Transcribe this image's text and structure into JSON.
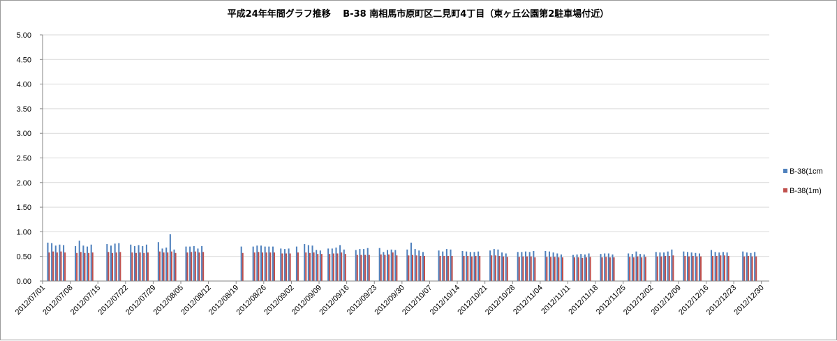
{
  "chart_data": {
    "type": "bar",
    "title": "平成24年年間グラフ推移　 B-38 南相馬市原町区二見町4丁目（東ヶ丘公園第2駐車場付近）",
    "xlabel": "",
    "ylabel": "",
    "ylim": [
      0,
      5
    ],
    "yticks": [
      "0.00",
      "0.50",
      "1.00",
      "1.50",
      "2.00",
      "2.50",
      "3.00",
      "3.50",
      "4.00",
      "4.50",
      "5.00"
    ],
    "x_start": "2012-07-01",
    "x_end": "2012-12-31",
    "xtick_labels": [
      "2012/07/01",
      "2012/07/08",
      "2012/07/15",
      "2012/07/22",
      "2012/07/29",
      "2012/08/05",
      "2012/08/12",
      "2012/08/19",
      "2012/08/26",
      "2012/09/02",
      "2012/09/09",
      "2012/09/16",
      "2012/09/23",
      "2012/09/30",
      "2012/10/07",
      "2012/10/14",
      "2012/10/21",
      "2012/10/28",
      "2012/11/04",
      "2012/11/11",
      "2012/11/18",
      "2012/11/25",
      "2012/12/02",
      "2012/12/09",
      "2012/12/16",
      "2012/12/23",
      "2012/12/30"
    ],
    "grid": true,
    "legend_position": "right",
    "series": [
      {
        "name": "B-38(1cm",
        "color": "#4f81bd",
        "points": [
          [
            "2012-07-02",
            0.78
          ],
          [
            "2012-07-03",
            0.77
          ],
          [
            "2012-07-04",
            0.72
          ],
          [
            "2012-07-05",
            0.74
          ],
          [
            "2012-07-06",
            0.73
          ],
          [
            "2012-07-09",
            0.71
          ],
          [
            "2012-07-10",
            0.82
          ],
          [
            "2012-07-11",
            0.72
          ],
          [
            "2012-07-12",
            0.7
          ],
          [
            "2012-07-13",
            0.74
          ],
          [
            "2012-07-17",
            0.75
          ],
          [
            "2012-07-18",
            0.72
          ],
          [
            "2012-07-19",
            0.76
          ],
          [
            "2012-07-20",
            0.77
          ],
          [
            "2012-07-23",
            0.74
          ],
          [
            "2012-07-24",
            0.71
          ],
          [
            "2012-07-25",
            0.73
          ],
          [
            "2012-07-26",
            0.71
          ],
          [
            "2012-07-27",
            0.74
          ],
          [
            "2012-07-30",
            0.79
          ],
          [
            "2012-07-31",
            0.66
          ],
          [
            "2012-08-01",
            0.68
          ],
          [
            "2012-08-02",
            0.95
          ],
          [
            "2012-08-03",
            0.64
          ],
          [
            "2012-08-06",
            0.7
          ],
          [
            "2012-08-07",
            0.7
          ],
          [
            "2012-08-08",
            0.71
          ],
          [
            "2012-08-09",
            0.66
          ],
          [
            "2012-08-10",
            0.71
          ],
          [
            "2012-08-20",
            0.7
          ],
          [
            "2012-08-23",
            0.7
          ],
          [
            "2012-08-24",
            0.72
          ],
          [
            "2012-08-25",
            0.72
          ],
          [
            "2012-08-26",
            0.7
          ],
          [
            "2012-08-27",
            0.7
          ],
          [
            "2012-08-28",
            0.7
          ],
          [
            "2012-08-30",
            0.66
          ],
          [
            "2012-08-31",
            0.65
          ],
          [
            "2012-09-01",
            0.66
          ],
          [
            "2012-09-03",
            0.7
          ],
          [
            "2012-09-05",
            0.75
          ],
          [
            "2012-09-06",
            0.73
          ],
          [
            "2012-09-07",
            0.72
          ],
          [
            "2012-09-08",
            0.63
          ],
          [
            "2012-09-09",
            0.62
          ],
          [
            "2012-09-11",
            0.66
          ],
          [
            "2012-09-12",
            0.66
          ],
          [
            "2012-09-13",
            0.68
          ],
          [
            "2012-09-14",
            0.73
          ],
          [
            "2012-09-15",
            0.64
          ],
          [
            "2012-09-18",
            0.63
          ],
          [
            "2012-09-19",
            0.65
          ],
          [
            "2012-09-20",
            0.65
          ],
          [
            "2012-09-21",
            0.67
          ],
          [
            "2012-09-24",
            0.67
          ],
          [
            "2012-09-25",
            0.59
          ],
          [
            "2012-09-26",
            0.63
          ],
          [
            "2012-09-27",
            0.64
          ],
          [
            "2012-09-28",
            0.63
          ],
          [
            "2012-10-01",
            0.64
          ],
          [
            "2012-10-02",
            0.78
          ],
          [
            "2012-10-03",
            0.65
          ],
          [
            "2012-10-04",
            0.62
          ],
          [
            "2012-10-05",
            0.59
          ],
          [
            "2012-10-09",
            0.62
          ],
          [
            "2012-10-10",
            0.6
          ],
          [
            "2012-10-11",
            0.65
          ],
          [
            "2012-10-12",
            0.64
          ],
          [
            "2012-10-15",
            0.61
          ],
          [
            "2012-10-16",
            0.6
          ],
          [
            "2012-10-17",
            0.59
          ],
          [
            "2012-10-18",
            0.59
          ],
          [
            "2012-10-19",
            0.6
          ],
          [
            "2012-10-22",
            0.62
          ],
          [
            "2012-10-23",
            0.65
          ],
          [
            "2012-10-24",
            0.64
          ],
          [
            "2012-10-25",
            0.58
          ],
          [
            "2012-10-26",
            0.56
          ],
          [
            "2012-10-29",
            0.59
          ],
          [
            "2012-10-30",
            0.59
          ],
          [
            "2012-10-31",
            0.6
          ],
          [
            "2012-11-01",
            0.59
          ],
          [
            "2012-11-02",
            0.61
          ],
          [
            "2012-11-05",
            0.61
          ],
          [
            "2012-11-06",
            0.6
          ],
          [
            "2012-11-07",
            0.58
          ],
          [
            "2012-11-08",
            0.56
          ],
          [
            "2012-11-09",
            0.54
          ],
          [
            "2012-11-12",
            0.53
          ],
          [
            "2012-11-13",
            0.54
          ],
          [
            "2012-11-14",
            0.55
          ],
          [
            "2012-11-15",
            0.54
          ],
          [
            "2012-11-16",
            0.56
          ],
          [
            "2012-11-19",
            0.55
          ],
          [
            "2012-11-20",
            0.56
          ],
          [
            "2012-11-21",
            0.56
          ],
          [
            "2012-11-22",
            0.54
          ],
          [
            "2012-11-26",
            0.56
          ],
          [
            "2012-11-27",
            0.55
          ],
          [
            "2012-11-28",
            0.6
          ],
          [
            "2012-11-29",
            0.55
          ],
          [
            "2012-11-30",
            0.54
          ],
          [
            "2012-12-03",
            0.59
          ],
          [
            "2012-12-04",
            0.58
          ],
          [
            "2012-12-05",
            0.58
          ],
          [
            "2012-12-06",
            0.6
          ],
          [
            "2012-12-07",
            0.64
          ],
          [
            "2012-12-10",
            0.6
          ],
          [
            "2012-12-11",
            0.59
          ],
          [
            "2012-12-12",
            0.58
          ],
          [
            "2012-12-13",
            0.57
          ],
          [
            "2012-12-14",
            0.56
          ],
          [
            "2012-12-17",
            0.63
          ],
          [
            "2012-12-18",
            0.59
          ],
          [
            "2012-12-19",
            0.58
          ],
          [
            "2012-12-20",
            0.59
          ],
          [
            "2012-12-21",
            0.58
          ],
          [
            "2012-12-25",
            0.6
          ],
          [
            "2012-12-26",
            0.58
          ],
          [
            "2012-12-27",
            0.57
          ],
          [
            "2012-12-28",
            0.59
          ]
        ]
      },
      {
        "name": "B-38(1m)",
        "color": "#c0504d",
        "points": [
          [
            "2012-07-02",
            0.58
          ],
          [
            "2012-07-03",
            0.6
          ],
          [
            "2012-07-04",
            0.58
          ],
          [
            "2012-07-05",
            0.6
          ],
          [
            "2012-07-06",
            0.58
          ],
          [
            "2012-07-09",
            0.57
          ],
          [
            "2012-07-10",
            0.59
          ],
          [
            "2012-07-11",
            0.57
          ],
          [
            "2012-07-12",
            0.57
          ],
          [
            "2012-07-13",
            0.58
          ],
          [
            "2012-07-17",
            0.59
          ],
          [
            "2012-07-18",
            0.57
          ],
          [
            "2012-07-19",
            0.58
          ],
          [
            "2012-07-20",
            0.59
          ],
          [
            "2012-07-23",
            0.58
          ],
          [
            "2012-07-24",
            0.57
          ],
          [
            "2012-07-25",
            0.58
          ],
          [
            "2012-07-26",
            0.57
          ],
          [
            "2012-07-27",
            0.58
          ],
          [
            "2012-07-30",
            0.6
          ],
          [
            "2012-07-31",
            0.58
          ],
          [
            "2012-08-01",
            0.58
          ],
          [
            "2012-08-02",
            0.6
          ],
          [
            "2012-08-03",
            0.57
          ],
          [
            "2012-08-06",
            0.58
          ],
          [
            "2012-08-07",
            0.59
          ],
          [
            "2012-08-08",
            0.6
          ],
          [
            "2012-08-09",
            0.58
          ],
          [
            "2012-08-10",
            0.59
          ],
          [
            "2012-08-20",
            0.57
          ],
          [
            "2012-08-23",
            0.58
          ],
          [
            "2012-08-24",
            0.59
          ],
          [
            "2012-08-25",
            0.58
          ],
          [
            "2012-08-26",
            0.58
          ],
          [
            "2012-08-27",
            0.58
          ],
          [
            "2012-08-28",
            0.58
          ],
          [
            "2012-08-30",
            0.56
          ],
          [
            "2012-08-31",
            0.56
          ],
          [
            "2012-09-01",
            0.56
          ],
          [
            "2012-09-03",
            0.58
          ],
          [
            "2012-09-05",
            0.58
          ],
          [
            "2012-09-06",
            0.57
          ],
          [
            "2012-09-07",
            0.58
          ],
          [
            "2012-09-08",
            0.55
          ],
          [
            "2012-09-09",
            0.55
          ],
          [
            "2012-09-11",
            0.55
          ],
          [
            "2012-09-12",
            0.56
          ],
          [
            "2012-09-13",
            0.56
          ],
          [
            "2012-09-14",
            0.58
          ],
          [
            "2012-09-15",
            0.55
          ],
          [
            "2012-09-18",
            0.53
          ],
          [
            "2012-09-19",
            0.53
          ],
          [
            "2012-09-20",
            0.53
          ],
          [
            "2012-09-21",
            0.53
          ],
          [
            "2012-09-24",
            0.54
          ],
          [
            "2012-09-25",
            0.53
          ],
          [
            "2012-09-26",
            0.54
          ],
          [
            "2012-09-27",
            0.58
          ],
          [
            "2012-09-28",
            0.52
          ],
          [
            "2012-10-01",
            0.52
          ],
          [
            "2012-10-02",
            0.53
          ],
          [
            "2012-10-03",
            0.52
          ],
          [
            "2012-10-04",
            0.51
          ],
          [
            "2012-10-05",
            0.51
          ],
          [
            "2012-10-09",
            0.51
          ],
          [
            "2012-10-10",
            0.51
          ],
          [
            "2012-10-11",
            0.51
          ],
          [
            "2012-10-12",
            0.51
          ],
          [
            "2012-10-15",
            0.51
          ],
          [
            "2012-10-16",
            0.51
          ],
          [
            "2012-10-17",
            0.5
          ],
          [
            "2012-10-18",
            0.51
          ],
          [
            "2012-10-19",
            0.51
          ],
          [
            "2012-10-22",
            0.52
          ],
          [
            "2012-10-23",
            0.52
          ],
          [
            "2012-10-24",
            0.51
          ],
          [
            "2012-10-25",
            0.5
          ],
          [
            "2012-10-26",
            0.49
          ],
          [
            "2012-10-29",
            0.49
          ],
          [
            "2012-10-30",
            0.5
          ],
          [
            "2012-10-31",
            0.5
          ],
          [
            "2012-11-01",
            0.5
          ],
          [
            "2012-11-02",
            0.48
          ],
          [
            "2012-11-05",
            0.49
          ],
          [
            "2012-11-06",
            0.49
          ],
          [
            "2012-11-07",
            0.49
          ],
          [
            "2012-11-08",
            0.48
          ],
          [
            "2012-11-09",
            0.48
          ],
          [
            "2012-11-12",
            0.48
          ],
          [
            "2012-11-13",
            0.48
          ],
          [
            "2012-11-14",
            0.47
          ],
          [
            "2012-11-15",
            0.48
          ],
          [
            "2012-11-16",
            0.49
          ],
          [
            "2012-11-19",
            0.48
          ],
          [
            "2012-11-20",
            0.49
          ],
          [
            "2012-11-21",
            0.48
          ],
          [
            "2012-11-22",
            0.48
          ],
          [
            "2012-11-26",
            0.49
          ],
          [
            "2012-11-27",
            0.48
          ],
          [
            "2012-11-28",
            0.5
          ],
          [
            "2012-11-29",
            0.48
          ],
          [
            "2012-11-30",
            0.49
          ],
          [
            "2012-12-03",
            0.5
          ],
          [
            "2012-12-04",
            0.5
          ],
          [
            "2012-12-05",
            0.51
          ],
          [
            "2012-12-06",
            0.51
          ],
          [
            "2012-12-07",
            0.52
          ],
          [
            "2012-12-10",
            0.51
          ],
          [
            "2012-12-11",
            0.5
          ],
          [
            "2012-12-12",
            0.51
          ],
          [
            "2012-12-13",
            0.5
          ],
          [
            "2012-12-14",
            0.5
          ],
          [
            "2012-12-17",
            0.51
          ],
          [
            "2012-12-18",
            0.51
          ],
          [
            "2012-12-19",
            0.52
          ],
          [
            "2012-12-20",
            0.52
          ],
          [
            "2012-12-21",
            0.51
          ],
          [
            "2012-12-25",
            0.5
          ],
          [
            "2012-12-26",
            0.51
          ],
          [
            "2012-12-27",
            0.5
          ],
          [
            "2012-12-28",
            0.5
          ]
        ]
      }
    ]
  }
}
